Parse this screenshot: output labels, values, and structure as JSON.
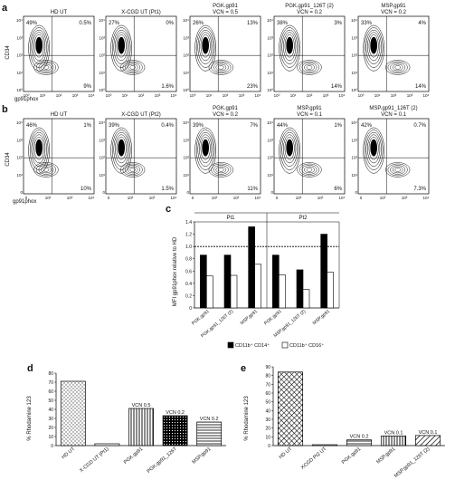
{
  "panels": {
    "a": {
      "letter": "a",
      "ylabel": "CD34",
      "xlabel": "gp91phox",
      "ticks_y": [
        "10⁴",
        "10³",
        "10²",
        "10¹",
        "10⁰"
      ],
      "ticks_x": [
        "10⁰",
        "10¹",
        "10²",
        "10³",
        "10⁴"
      ],
      "plots": [
        {
          "title": "HD UT",
          "ul": "49%",
          "ur": "0.5%",
          "lr": "9%"
        },
        {
          "title": "X-CGD UT (Pt1)",
          "ul": "27%",
          "ur": "0%",
          "lr": "1.6%"
        },
        {
          "title": "PGK.gp91",
          "vcn": "VCN = 0.5",
          "ul": "26%",
          "ur": "13%",
          "lr": "23%"
        },
        {
          "title": "PGK.gp91_126T (2)",
          "vcn": "VCN = 0.2",
          "ul": "38%",
          "ur": "3%",
          "lr": "14%"
        },
        {
          "title": "MSP.gp91",
          "vcn": "VCN = 0.2",
          "ul": "33%",
          "ur": "4%",
          "lr": "14%"
        }
      ]
    },
    "b": {
      "letter": "b",
      "ylabel": "CD34",
      "xlabel": "gp91phox",
      "ticks_y": [
        "10⁴",
        "10³",
        "10²",
        "10¹",
        "0"
      ],
      "ticks_x": [
        "0",
        "10²",
        "10³",
        "10⁴"
      ],
      "plots": [
        {
          "title": "HD UT",
          "ul": "46%",
          "ur": "1%",
          "lr": "10%"
        },
        {
          "title": "X-CGD UT (Pt2)",
          "ul": "39%",
          "ur": "0.4%",
          "lr": "1.5%"
        },
        {
          "title": "PGK.gp91",
          "vcn": "VCN = 0.2",
          "ul": "39%",
          "ur": "7%",
          "lr": "11%"
        },
        {
          "title": "MSP.gp91",
          "vcn": "VCN = 0.1",
          "ul": "44%",
          "ur": "1%",
          "lr": "6%"
        },
        {
          "title": "MSP.gp91_126T (2)",
          "vcn": "VCN = 0.1",
          "ul": "42%",
          "ur": "0.7%",
          "lr": "7.3%"
        }
      ]
    },
    "c": {
      "letter": "c"
    },
    "d": {
      "letter": "d"
    },
    "e": {
      "letter": "e"
    }
  },
  "chart_data": [
    {
      "panel": "c",
      "type": "bar",
      "ylabel": "MFI gp91phox relative to HD",
      "ylim": [
        0,
        1.4
      ],
      "yticks": [
        "0",
        "0.2",
        "0.4",
        "0.6",
        "0.8",
        "1.0",
        "1.2",
        "1.4"
      ],
      "reference_line": 1.0,
      "groups": [
        "Pt1",
        "Pt2"
      ],
      "categories": [
        "PGK.gp91",
        "PGK.gp91_126T (2)",
        "MSP.gp91",
        "PGK.gp91",
        "MSP.gp91_126T (2)",
        "MSP.gp91"
      ],
      "series": [
        {
          "name": "CD11b⁺ CD14⁺",
          "color": "#000000",
          "values": [
            0.86,
            0.86,
            1.32,
            0.86,
            0.62,
            1.2
          ]
        },
        {
          "name": "CD11b⁺ CD16⁺",
          "color": "#ffffff",
          "values": [
            0.52,
            0.53,
            0.71,
            0.54,
            0.3,
            0.58
          ]
        }
      ],
      "legend_position": "bottom"
    },
    {
      "panel": "d",
      "type": "bar",
      "ylabel": "% Rhodamine 123",
      "ylim": [
        0,
        80
      ],
      "yticks": [
        "0",
        "10",
        "20",
        "30",
        "40",
        "50",
        "60",
        "70",
        "80"
      ],
      "categories": [
        "HD UT",
        "X-CGD UT (Pt1)",
        "PGK.gp91",
        "PGK.gp91_126T",
        "MSP.gp91"
      ],
      "values": [
        71,
        2,
        41,
        33,
        26
      ],
      "annotations": [
        "",
        "",
        "VCN 0.5",
        "VCN 0.2",
        "VCN 0.2"
      ]
    },
    {
      "panel": "e",
      "type": "bar",
      "ylabel": "% Rhodamine 123",
      "ylim": [
        0,
        90
      ],
      "yticks": [
        "0",
        "10",
        "20",
        "30",
        "40",
        "50",
        "60",
        "70",
        "80",
        "90"
      ],
      "categories": [
        "HD UT",
        "XCGD Pt2 UT",
        "PGK.gp91",
        "MSP.gp91",
        "MSP.gp91_126T (2)"
      ],
      "values": [
        84,
        1,
        6.5,
        11,
        11.5
      ],
      "annotations": [
        "",
        "",
        "VCN 0.2",
        "VCN 0.1",
        "VCN 0.1"
      ]
    }
  ]
}
